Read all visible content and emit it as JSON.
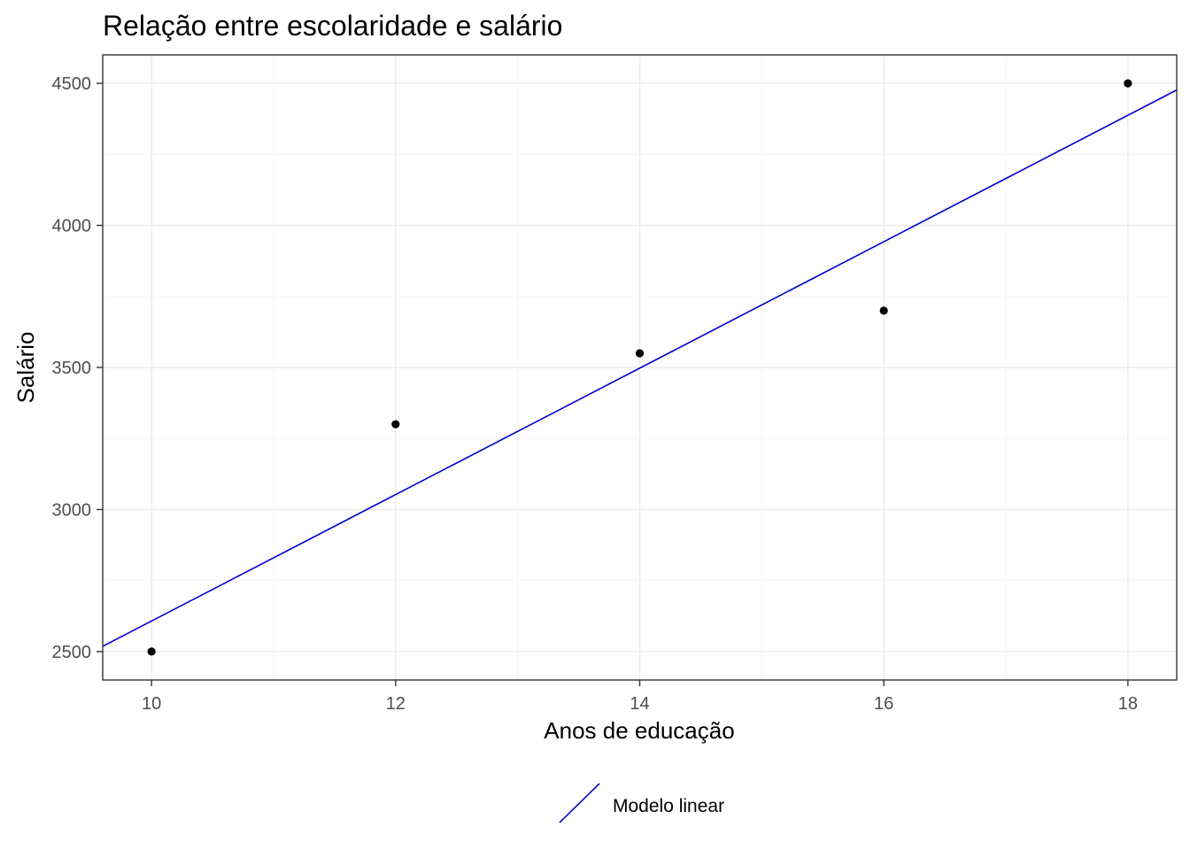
{
  "chart_data": {
    "type": "scatter",
    "title": "Relação entre escolaridade e salário",
    "xlabel": "Anos de educação",
    "ylabel": "Salário",
    "xlim": [
      9.6,
      18.4
    ],
    "ylim": [
      2400,
      4600
    ],
    "x_ticks": [
      10,
      12,
      14,
      16,
      18
    ],
    "y_ticks": [
      2500,
      3000,
      3500,
      4000,
      4500
    ],
    "x_tick_labels": [
      "10",
      "12",
      "14",
      "16",
      "18"
    ],
    "y_tick_labels": [
      "2500",
      "3000",
      "3500",
      "4000",
      "4500"
    ],
    "grid": true,
    "points": {
      "x": [
        10,
        12,
        14,
        16,
        18
      ],
      "y": [
        2500,
        3300,
        3550,
        3700,
        4500
      ],
      "color": "#000000"
    },
    "fit_line": {
      "name": "Modelo linear",
      "intercept": 382.5,
      "slope": 222.5,
      "color": "#0000cd"
    },
    "legend": {
      "position": "bottom",
      "entries": [
        "Modelo linear"
      ]
    }
  }
}
